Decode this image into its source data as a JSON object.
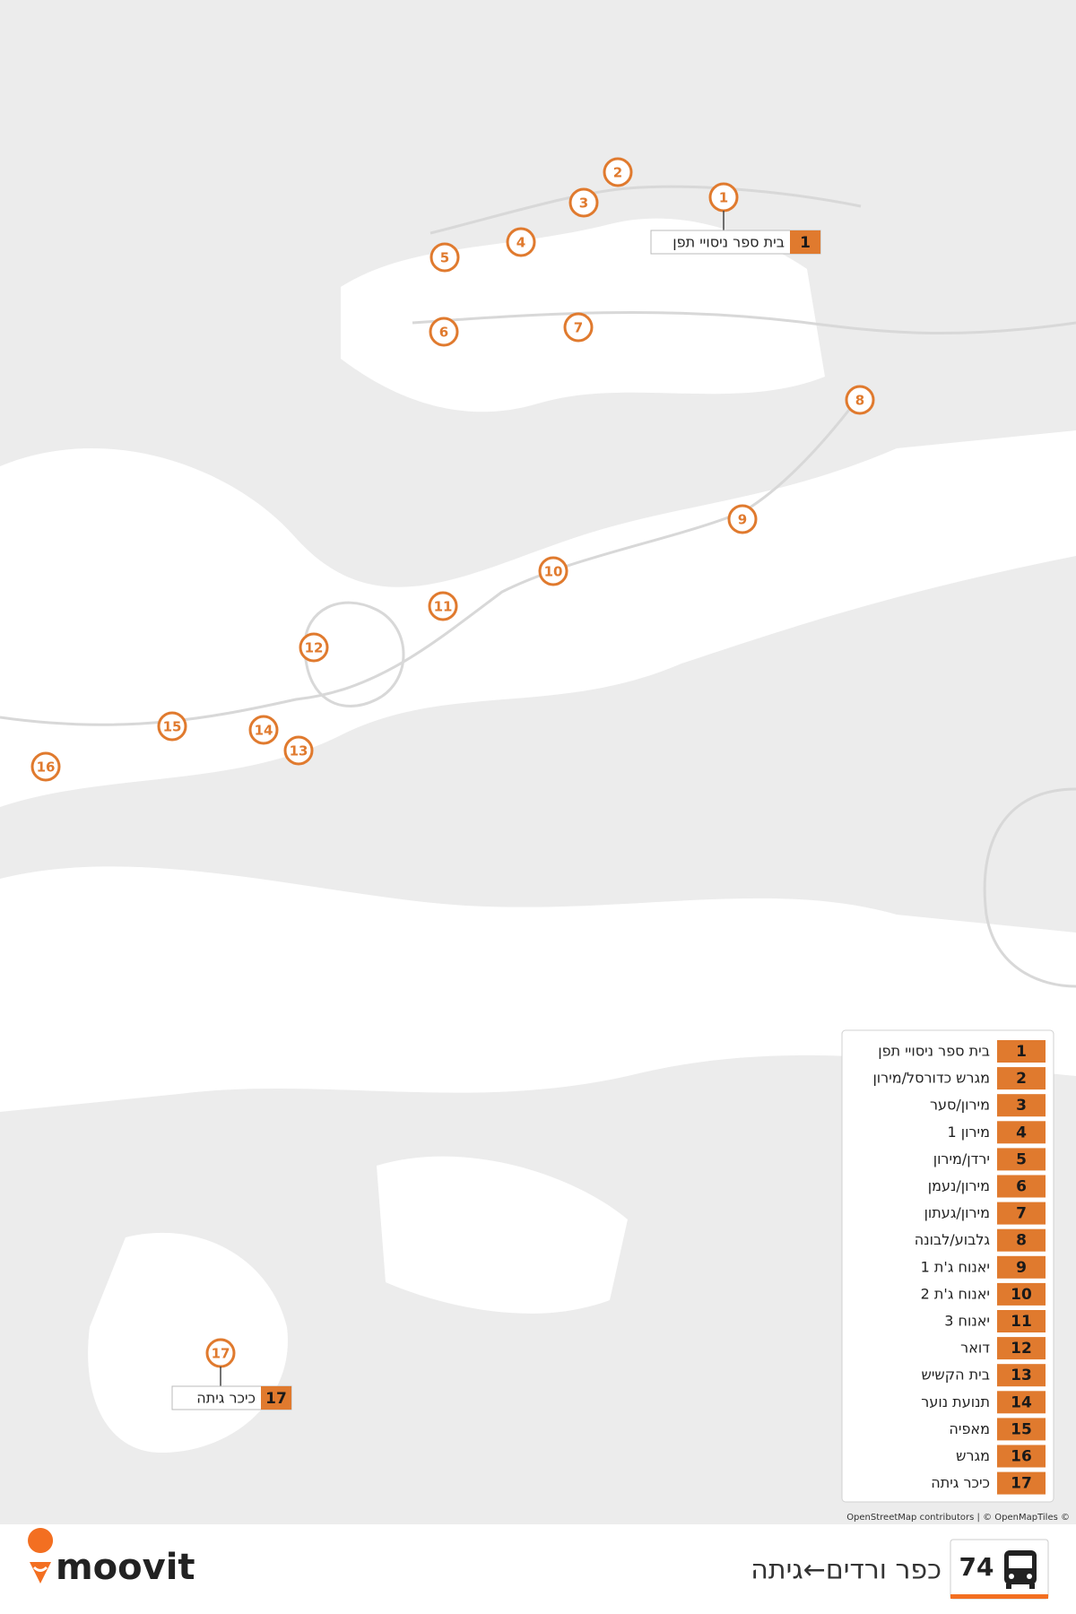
{
  "route": {
    "number": "74",
    "title": "כפר ורדים←גיתה"
  },
  "stops": [
    {
      "number": "1",
      "name": "בית ספר ניסויי תפן"
    },
    {
      "number": "2",
      "name": "מגרש כדורסל/מירון"
    },
    {
      "number": "3",
      "name": "מירון/סער"
    },
    {
      "number": "4",
      "name": "מירון 1"
    },
    {
      "number": "5",
      "name": "ירדן/מירון"
    },
    {
      "number": "6",
      "name": "מירון/נעמן"
    },
    {
      "number": "7",
      "name": "מירון/געתון"
    },
    {
      "number": "8",
      "name": "גלבוע/לבונה"
    },
    {
      "number": "9",
      "name": "יאנוח ג'ת 1"
    },
    {
      "number": "10",
      "name": "יאנוח ג'ת 2"
    },
    {
      "number": "11",
      "name": "יאנוח 3"
    },
    {
      "number": "12",
      "name": "דואר"
    },
    {
      "number": "13",
      "name": "בית הקשיש"
    },
    {
      "number": "14",
      "name": "תנועת נוער"
    },
    {
      "number": "15",
      "name": "מאפיה"
    },
    {
      "number": "16",
      "name": "מגרש"
    },
    {
      "number": "17",
      "name": "כיכר גיתה"
    }
  ],
  "map": {
    "attribution": "OpenStreetMap contributors | © OpenMapTiles ©"
  },
  "brand": "moovit"
}
